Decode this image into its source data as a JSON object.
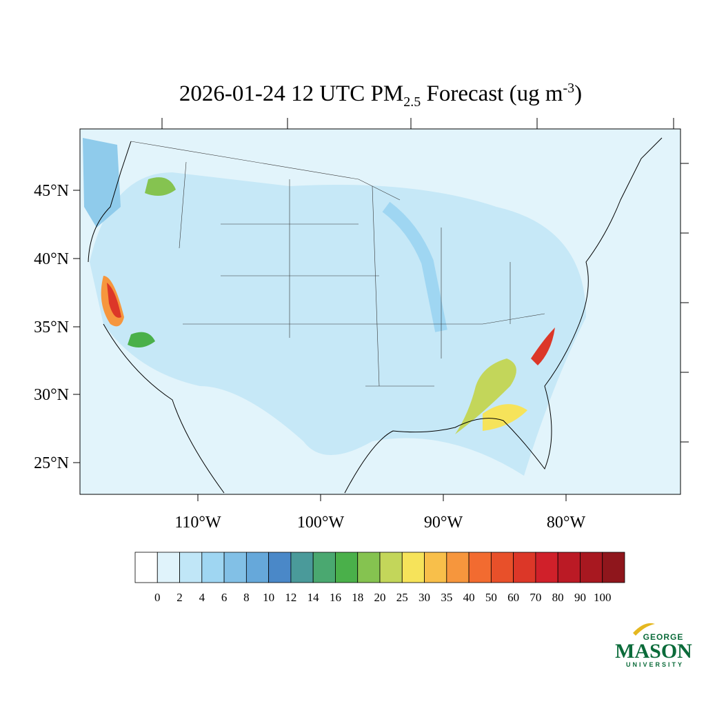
{
  "title": {
    "main": "2026-01-24 12 UTC PM",
    "sub": "2.5",
    "mid": " Forecast (ug m",
    "sup": "-3",
    "end": ")"
  },
  "map": {
    "lat_labels": [
      "45°N",
      "40°N",
      "35°N",
      "30°N",
      "25°N"
    ],
    "lon_labels": [
      "110°W",
      "100°W",
      "90°W",
      "80°W"
    ]
  },
  "colorbar": {
    "levels": [
      0,
      2,
      4,
      6,
      8,
      10,
      12,
      14,
      16,
      18,
      20,
      25,
      30,
      35,
      40,
      50,
      60,
      70,
      80,
      90,
      100
    ],
    "colors": [
      "#ffffff",
      "#e0f3fb",
      "#c0e6f7",
      "#9fd6f2",
      "#82c0e6",
      "#66a8da",
      "#4a88c8",
      "#4a9a9a",
      "#4aa870",
      "#4ab04a",
      "#85c350",
      "#c3d65a",
      "#f6e35a",
      "#f8bf4a",
      "#f6963d",
      "#f26b30",
      "#e8502a",
      "#dc3728",
      "#d0202a",
      "#bb1a25",
      "#a81820",
      "#8f161c"
    ]
  },
  "logo": {
    "top": "GEORGE",
    "main": "MASON",
    "bottom": "UNIVERSITY"
  }
}
